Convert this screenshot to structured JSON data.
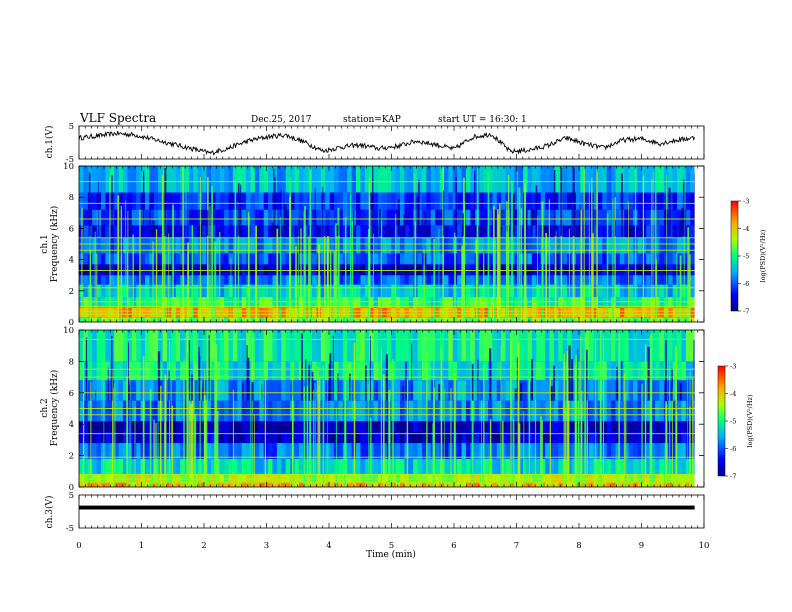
{
  "header": {
    "title": "VLF Spectra",
    "date": "Dec.25, 2017",
    "station": "station=KAP",
    "start": "start UT =  16:30: 1"
  },
  "chart_data": [
    {
      "type": "line",
      "panel": "ch1-waveform",
      "ylabel": "ch.1(V)",
      "ylim": [
        -5,
        5
      ],
      "yticks": [
        "5",
        "-5"
      ],
      "xlim": [
        0,
        10
      ],
      "x_end": 9.85,
      "trace_color": "#000000",
      "envelope": {
        "x": [
          0,
          0.3,
          0.6,
          0.9,
          1.2,
          1.5,
          1.8,
          2.1,
          2.4,
          2.7,
          3.0,
          3.3,
          3.6,
          3.9,
          4.2,
          4.5,
          4.8,
          5.1,
          5.4,
          5.7,
          6.0,
          6.3,
          6.6,
          6.9,
          7.2,
          7.5,
          7.8,
          8.1,
          8.4,
          8.7,
          9.0,
          9.3,
          9.6,
          9.85
        ],
        "y": [
          1.5,
          2.2,
          3.0,
          2.5,
          1.0,
          -0.5,
          -2.0,
          -3.5,
          -1.8,
          0.5,
          1.8,
          2.5,
          0.2,
          -2.8,
          -1.5,
          -0.8,
          -2.0,
          -1.2,
          0.5,
          -0.6,
          -2.2,
          1.8,
          2.8,
          -3.0,
          -2.5,
          -1.0,
          1.5,
          -0.5,
          -1.8,
          0.8,
          1.2,
          -0.3,
          0.9,
          1.6
        ]
      }
    },
    {
      "type": "heatmap",
      "panel": "ch1-spectrogram",
      "ylabel": "Frequency (kHz)",
      "ylabel2": "ch.1",
      "xlim": [
        0,
        10
      ],
      "ylim": [
        0,
        10
      ],
      "yticks": [
        "0",
        "2",
        "4",
        "6",
        "8",
        "10"
      ],
      "colorbar": {
        "range": [
          -7,
          -3
        ],
        "ticks": [
          "-3",
          "-4",
          "-5",
          "-6",
          "-7"
        ],
        "label": "log(PSD)(V²/Hz)"
      },
      "background_level": -6.6,
      "band_levels": [
        {
          "f_low": 0.0,
          "f_high": 0.3,
          "level": -4.6
        },
        {
          "f_low": 0.3,
          "f_high": 0.9,
          "level": -3.8
        },
        {
          "f_low": 0.9,
          "f_high": 1.6,
          "level": -5.0
        },
        {
          "f_low": 1.6,
          "f_high": 2.4,
          "level": -5.4
        },
        {
          "f_low": 2.4,
          "f_high": 3.0,
          "level": -5.9
        },
        {
          "f_low": 3.0,
          "f_high": 3.7,
          "level": -6.7
        },
        {
          "f_low": 3.7,
          "f_high": 4.4,
          "level": -6.0
        },
        {
          "f_low": 4.4,
          "f_high": 5.4,
          "level": -5.8
        },
        {
          "f_low": 5.4,
          "f_high": 6.2,
          "level": -6.4
        },
        {
          "f_low": 6.2,
          "f_high": 7.2,
          "level": -6.1
        },
        {
          "f_low": 7.2,
          "f_high": 8.3,
          "level": -6.2
        },
        {
          "f_low": 8.3,
          "f_high": 10.0,
          "level": -5.5
        }
      ],
      "narrowband_lines_khz": [
        0.5,
        0.7,
        1.0,
        1.3,
        2.2,
        3.3,
        4.6,
        5.0,
        5.4,
        6.6,
        7.6,
        9.0
      ],
      "narrowband_level": -4.3,
      "impulse_level": -5.0,
      "x_end": 9.85
    },
    {
      "type": "heatmap",
      "panel": "ch2-spectrogram",
      "ylabel": "Frequency (kHz)",
      "ylabel2": "ch.2",
      "xlim": [
        0,
        10
      ],
      "ylim": [
        0,
        10
      ],
      "yticks": [
        "0",
        "2",
        "4",
        "6",
        "8",
        "10"
      ],
      "colorbar": {
        "range": [
          -7,
          -3
        ],
        "ticks": [
          "-3",
          "-4",
          "-5",
          "-6",
          "-7"
        ],
        "label": "log(PSD)(V²/Hz)"
      },
      "background_level": -6.6,
      "band_levels": [
        {
          "f_low": 0.0,
          "f_high": 0.3,
          "level": -3.9
        },
        {
          "f_low": 0.3,
          "f_high": 0.8,
          "level": -4.4
        },
        {
          "f_low": 0.8,
          "f_high": 1.8,
          "level": -5.3
        },
        {
          "f_low": 1.8,
          "f_high": 2.8,
          "level": -5.9
        },
        {
          "f_low": 2.8,
          "f_high": 3.5,
          "level": -6.7
        },
        {
          "f_low": 3.5,
          "f_high": 4.2,
          "level": -6.8
        },
        {
          "f_low": 4.2,
          "f_high": 5.5,
          "level": -5.8
        },
        {
          "f_low": 5.5,
          "f_high": 6.8,
          "level": -5.7
        },
        {
          "f_low": 6.8,
          "f_high": 8.0,
          "level": -5.2
        },
        {
          "f_low": 8.0,
          "f_high": 10.0,
          "level": -5.1
        }
      ],
      "narrowband_lines_khz": [
        0.3,
        0.5,
        0.8,
        1.9,
        3.4,
        4.6,
        5.0,
        6.0,
        7.0,
        7.5,
        9.4
      ],
      "narrowband_level": -4.3,
      "impulse_level": -5.0,
      "x_end": 9.85
    },
    {
      "type": "line",
      "panel": "ch3-waveform",
      "ylabel": "ch.3(V)",
      "ylim": [
        -5,
        5
      ],
      "yticks": [
        "5",
        "-5"
      ],
      "xlim": [
        0,
        10
      ],
      "x_end": 9.85,
      "trace_color": "#000000",
      "envelope": {
        "x": [
          0,
          9.85
        ],
        "y": [
          1.3,
          1.3
        ]
      },
      "thickness_v": 0.8
    }
  ],
  "xaxis": {
    "label": "Time (min)",
    "ticks": [
      "0",
      "1",
      "2",
      "3",
      "4",
      "5",
      "6",
      "7",
      "8",
      "9",
      "10"
    ]
  }
}
